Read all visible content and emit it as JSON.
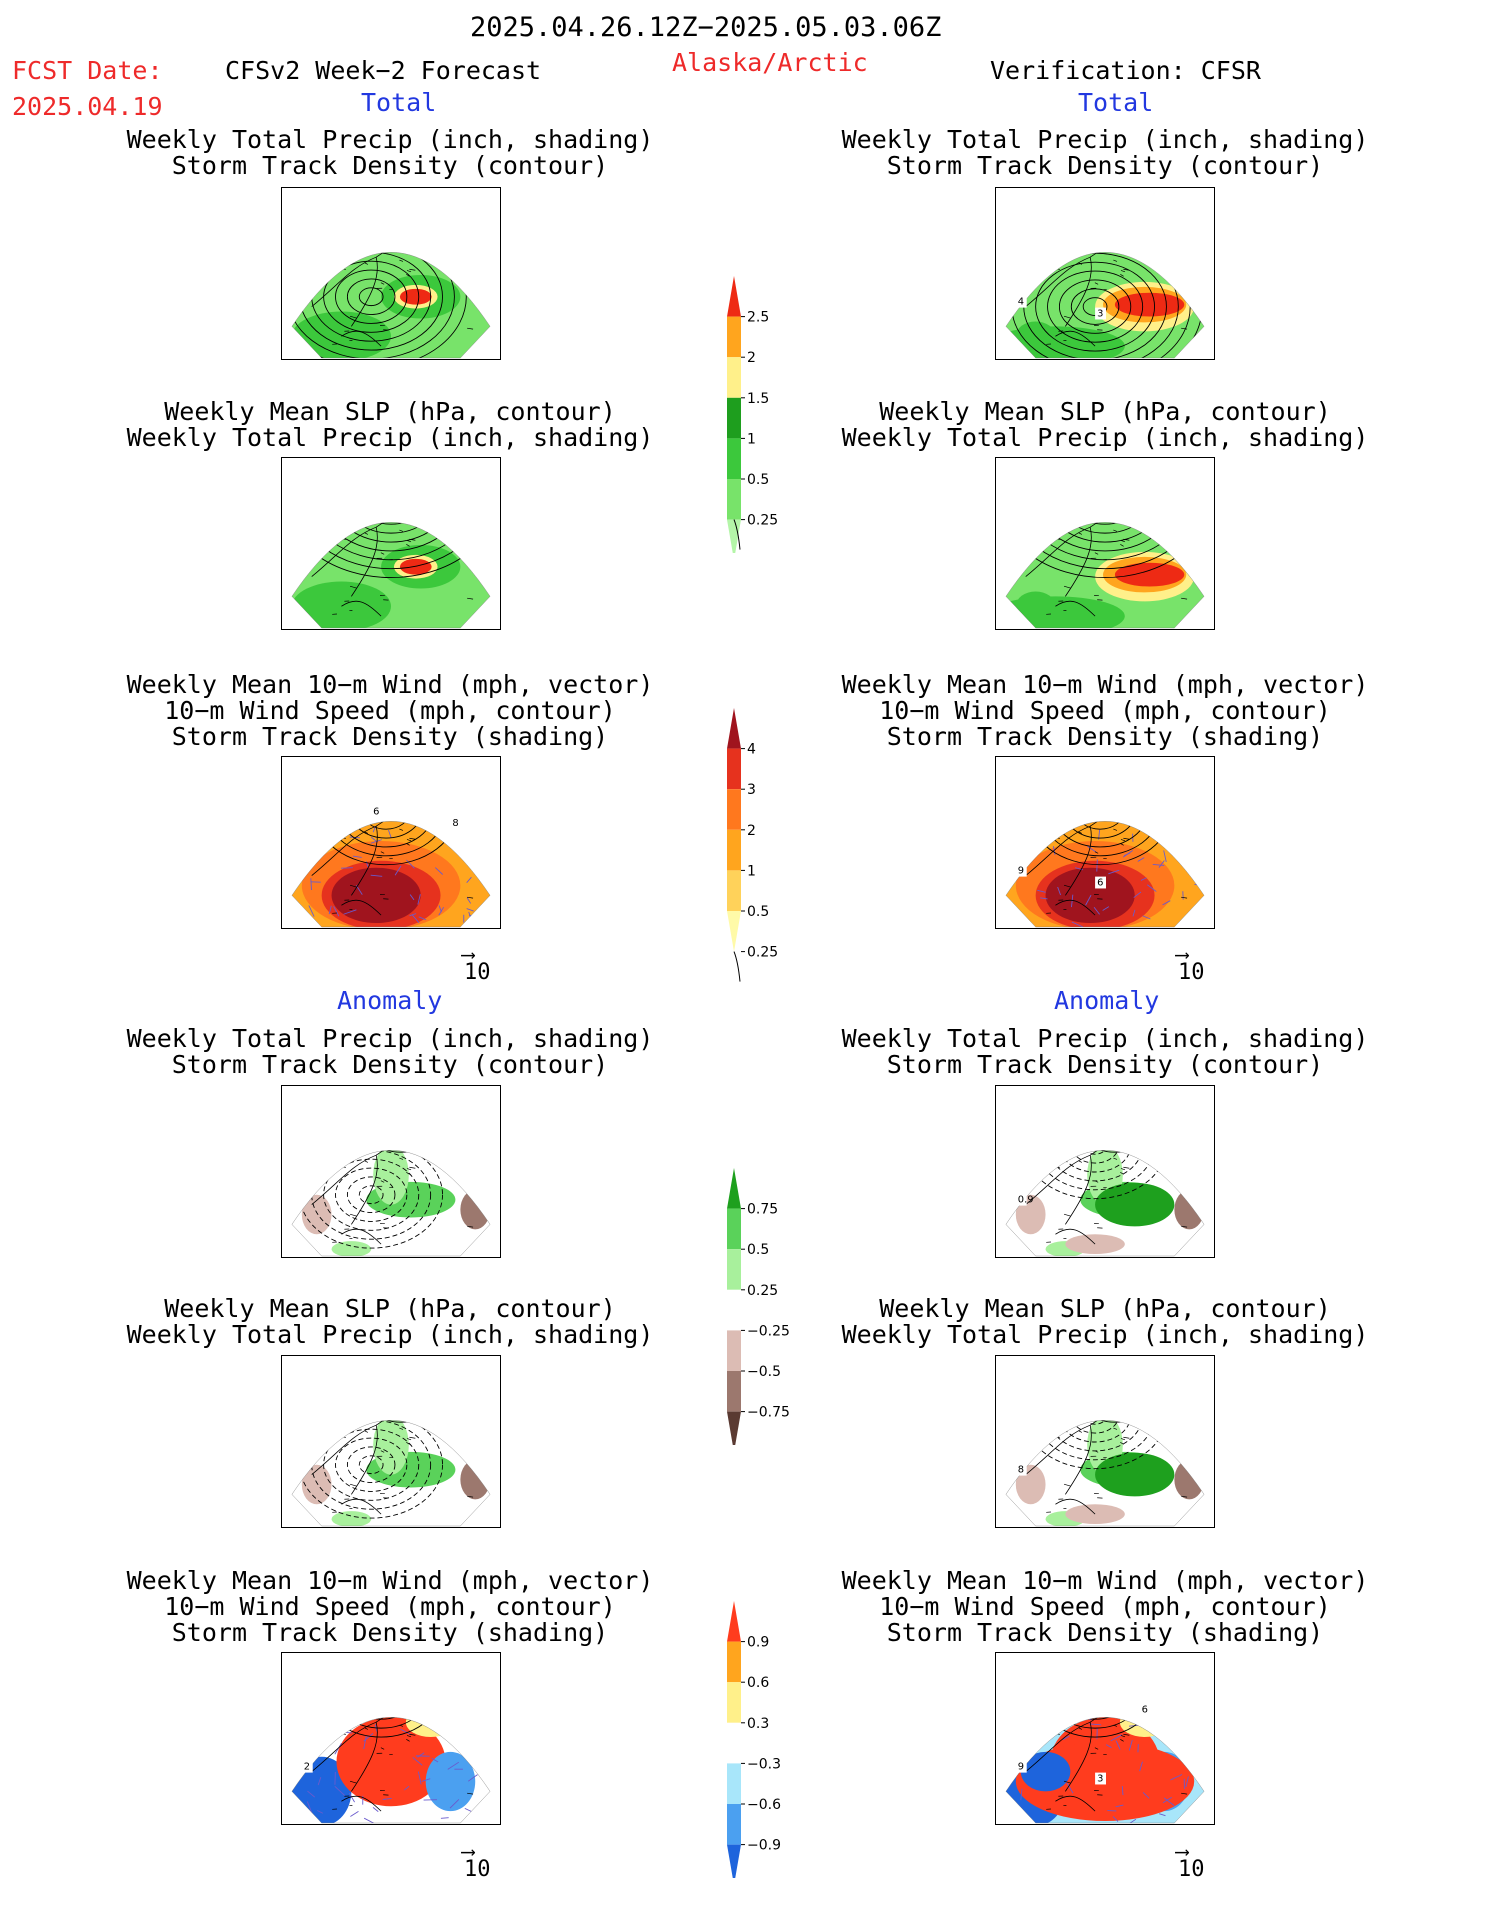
{
  "header": {
    "period": "2025.04.26.12Z−2025.05.03.06Z",
    "fcst_label": "FCST Date:",
    "fcst_date": "2025.04.19",
    "model": "CFSv2 Week−2 Forecast",
    "region": "Alaska/Arctic",
    "verification": "Verification: CFSR"
  },
  "sections": {
    "total_left": "Total",
    "total_right": "Total",
    "anomaly_left": "Anomaly",
    "anomaly_right": "Anomaly"
  },
  "titles": {
    "precip_storm": [
      "Weekly Total Precip (inch, shading)",
      "Storm Track Density (contour)"
    ],
    "slp_precip": [
      "Weekly Mean SLP (hPa, contour)",
      "Weekly Total Precip (inch, shading)"
    ],
    "wind_storm": [
      "Weekly Mean 10−m Wind (mph, vector)",
      "10−m Wind Speed (mph, contour)",
      "Storm Track Density (shading)"
    ]
  },
  "vector_ref": "10",
  "panel_labels": {
    "r1_right": [
      "4",
      "3"
    ],
    "r3_left": [
      "6",
      "8"
    ],
    "r3_right": [
      "9",
      "6"
    ],
    "r4_right": [
      "0.9"
    ],
    "r5_right": [
      "8"
    ],
    "r6_left": [
      "2"
    ],
    "r6_right": [
      "9",
      "3",
      "6"
    ]
  },
  "colors": {
    "greens": [
      "#b4f5a8",
      "#78e36a",
      "#3cc83c",
      "#1e9e1e",
      "#fff08a",
      "#ffa51e",
      "#ee2a14"
    ],
    "storm": [
      "#fffaa8",
      "#ffd25a",
      "#ffa51e",
      "#ff781e",
      "#e6321e",
      "#a0141e"
    ],
    "anom_precip": [
      "#5a3a32",
      "#9c786e",
      "#dcbcb4",
      "#ffffff",
      "#a8f09c",
      "#5ad25a",
      "#1ea01e"
    ],
    "anom_storm": [
      "#1e64dc",
      "#4ba0f0",
      "#a8e6fa",
      "#ffffff",
      "#fff08a",
      "#ffa51e",
      "#ff3c1e"
    ]
  },
  "chart_data": [
    {
      "type": "colorbar",
      "ticks": [
        "2.5",
        "2",
        "1.5",
        "1",
        "0.5",
        "0.25"
      ]
    },
    {
      "type": "colorbar",
      "ticks": [
        "4",
        "3",
        "2",
        "1",
        "0.5",
        "0.25"
      ]
    },
    {
      "type": "colorbar",
      "ticks": [
        "0.75",
        "0.5",
        "0.25",
        "−0.25",
        "−0.5",
        "−0.75"
      ]
    },
    {
      "type": "colorbar",
      "ticks": [
        "0.9",
        "0.6",
        "0.3",
        "−0.3",
        "−0.6",
        "−0.9"
      ]
    }
  ]
}
